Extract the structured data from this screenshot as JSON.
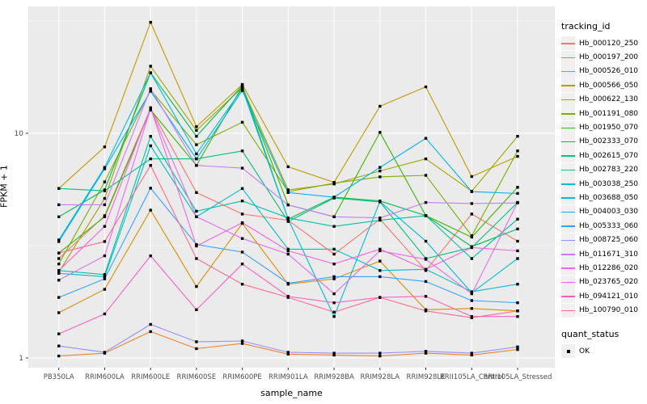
{
  "chart_data": {
    "type": "line",
    "xlabel": "sample_name",
    "ylabel": "FPKM + 1",
    "y_scale": "log10",
    "y_major_ticks": [
      1,
      10
    ],
    "y_tick_labels": [
      "1",
      "10"
    ],
    "y_minor_gridlines": [
      3.1623,
      31.623
    ],
    "ylim": [
      0.9,
      36.7
    ],
    "grid": true,
    "panel_color": "#EBEBEB",
    "gridline_color": "#FFFFFF",
    "point_color": "#000000",
    "legend_position": "right",
    "legend_title": "tracking_id",
    "quant_legend_title": "quant_status",
    "quant_legend_items": [
      "OK"
    ],
    "categories": [
      "PB350LA",
      "RRIM600LA",
      "RRIM600LE",
      "RRIM600SE",
      "RRIM600PE",
      "RRIM901LA",
      "RRIM928BA",
      "RRIM928LA",
      "RRIM928LE",
      "RRII105LA_Control",
      "RRII105LA_Stressed"
    ],
    "series": [
      {
        "name": "Hb_000120_250",
        "color": "#F8766D",
        "values": [
          2.77,
          4.3,
          12.9,
          5.45,
          4.37,
          4.1,
          2.9,
          4.15,
          2.45,
          4.37,
          3.31
        ]
      },
      {
        "name": "Hb_000197_200",
        "color": "#EA8331",
        "values": [
          1.02,
          1.05,
          1.31,
          1.1,
          1.16,
          1.04,
          1.03,
          1.02,
          1.05,
          1.03,
          1.09
        ]
      },
      {
        "name": "Hb_000526_010",
        "color": "#D89000",
        "values": [
          1.59,
          2.02,
          4.55,
          2.08,
          3.97,
          2.13,
          2.25,
          2.7,
          1.64,
          1.66,
          1.62
        ]
      },
      {
        "name": "Hb_000566_050",
        "color": "#C09B00",
        "values": [
          5.68,
          8.7,
          31.2,
          10.7,
          16.5,
          7.1,
          6.05,
          13.2,
          16.1,
          6.42,
          7.9
        ]
      },
      {
        "name": "Hb_000622_130",
        "color": "#A3A500",
        "values": [
          2.41,
          5.13,
          19.9,
          10.3,
          16.0,
          5.6,
          5.95,
          6.8,
          7.7,
          5.52,
          9.7
        ]
      },
      {
        "name": "Hb_001191_080",
        "color": "#7CAE00",
        "values": [
          2.62,
          6.08,
          15.6,
          8.9,
          11.2,
          5.5,
          6.0,
          6.4,
          6.5,
          3.5,
          8.35
        ]
      },
      {
        "name": "Hb_001950_070",
        "color": "#39B600",
        "values": [
          2.93,
          4.25,
          12.7,
          7.2,
          16.2,
          4.8,
          4.25,
          10.1,
          4.3,
          3.45,
          5.75
        ]
      },
      {
        "name": "Hb_002333_070",
        "color": "#00BB4E",
        "values": [
          4.25,
          5.6,
          18.6,
          9.7,
          16.3,
          4.15,
          5.2,
          5.0,
          4.3,
          3.13,
          3.75
        ]
      },
      {
        "name": "Hb_002615_070",
        "color": "#00BF7D",
        "values": [
          5.68,
          5.55,
          7.7,
          7.7,
          8.35,
          4.05,
          5.15,
          4.95,
          2.77,
          3.1,
          4.92
        ]
      },
      {
        "name": "Hb_002783_220",
        "color": "#00C1A3",
        "values": [
          2.45,
          2.35,
          9.7,
          4.5,
          5.0,
          4.2,
          3.85,
          4.1,
          4.3,
          2.77,
          4.15
        ]
      },
      {
        "name": "Hb_003038_250",
        "color": "#00BFC4",
        "values": [
          2.38,
          2.3,
          8.8,
          4.25,
          5.68,
          3.05,
          3.05,
          2.45,
          2.48,
          1.97,
          2.13
        ]
      },
      {
        "name": "Hb_003688_050",
        "color": "#00BBDA",
        "values": [
          3.35,
          7.05,
          18.6,
          8.1,
          15.8,
          4.15,
          1.53,
          4.97,
          3.31,
          1.95,
          2.77
        ]
      },
      {
        "name": "Hb_004003_030",
        "color": "#00B0F6",
        "values": [
          3.3,
          6.95,
          15.4,
          7.7,
          15.5,
          5.45,
          5.2,
          7.05,
          9.5,
          5.5,
          5.4
        ]
      },
      {
        "name": "Hb_005333_060",
        "color": "#35A2FF",
        "values": [
          1.86,
          2.25,
          5.7,
          3.2,
          2.96,
          2.15,
          2.3,
          2.3,
          2.19,
          1.8,
          1.76
        ]
      },
      {
        "name": "Hb_008725_060",
        "color": "#9590FF",
        "values": [
          1.13,
          1.06,
          1.41,
          1.18,
          1.19,
          1.06,
          1.05,
          1.05,
          1.07,
          1.05,
          1.12
        ]
      },
      {
        "name": "Hb_011671_310",
        "color": "#C77CFF",
        "values": [
          4.81,
          4.81,
          15.8,
          7.2,
          7.0,
          4.8,
          4.25,
          4.2,
          4.92,
          4.87,
          4.9
        ]
      },
      {
        "name": "Hb_012286_020",
        "color": "#E76BF3",
        "values": [
          2.22,
          2.85,
          12.9,
          4.25,
          3.4,
          2.9,
          1.93,
          3.0,
          2.75,
          1.93,
          4.92
        ]
      },
      {
        "name": "Hb_023765_020",
        "color": "#FA62DB",
        "values": [
          2.45,
          3.85,
          13.0,
          3.15,
          4.0,
          3.0,
          2.62,
          3.05,
          2.48,
          3.1,
          3.0
        ]
      },
      {
        "name": "Hb_094121_010",
        "color": "#FF61C3",
        "values": [
          1.28,
          1.57,
          2.85,
          1.64,
          2.62,
          1.88,
          1.76,
          1.86,
          1.88,
          1.53,
          1.53
        ]
      },
      {
        "name": "Hb_100790_010",
        "color": "#FF6C92",
        "values": [
          2.93,
          3.3,
          7.2,
          2.77,
          2.13,
          1.86,
          1.6,
          1.86,
          1.62,
          1.51,
          1.62
        ]
      }
    ]
  }
}
